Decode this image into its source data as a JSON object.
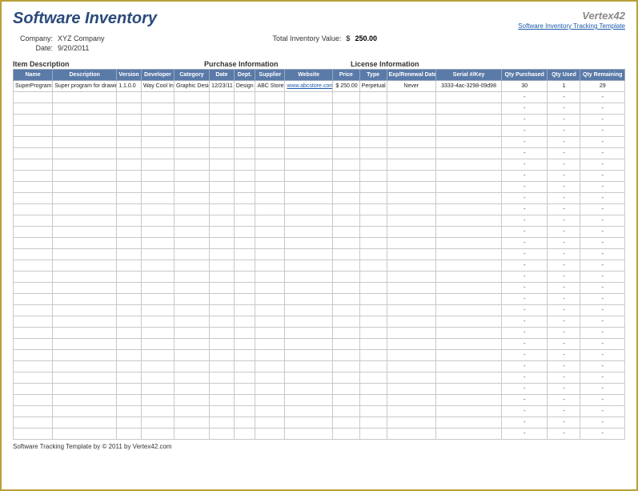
{
  "title": "Software Inventory",
  "brand": {
    "name": "Vertex42",
    "link_text": "Software Inventory Tracking Template"
  },
  "meta": {
    "company_label": "Company:",
    "company_value": "XYZ Company",
    "date_label": "Date:",
    "date_value": "9/20/2011",
    "total_label": "Total Inventory Value:",
    "currency": "$",
    "total_value": "250.00"
  },
  "sections": {
    "item": "Item Description",
    "purchase": "Purchase Information",
    "license": "License Information"
  },
  "columns": {
    "name": "Name",
    "description": "Description",
    "version": "Version",
    "developer": "Developer",
    "category": "Category",
    "date": "Date",
    "dept": "Dept.",
    "supplier": "Supplier",
    "website": "Website",
    "price": "Price",
    "type": "Type",
    "exp": "Exp/Renewal Date",
    "serial": "Serial #/Key",
    "qty_purchased": "Qty Purchased",
    "qty_used": "Qty Used",
    "qty_remaining": "Qty Remaining"
  },
  "col_widths": {
    "name": 48,
    "description": 78,
    "version": 30,
    "developer": 40,
    "category": 43,
    "date": 30,
    "dept": 26,
    "supplier": 36,
    "website": 58,
    "price": 33,
    "type": 33,
    "exp": 60,
    "serial": 80,
    "qty_purchased": 56,
    "qty_used": 40,
    "qty_remaining": 54
  },
  "rows": [
    {
      "name": "SuperProgram",
      "description": "Super program for drawin",
      "version": "1.1.0.0",
      "developer": "Way Cool In",
      "category": "Graphic Design",
      "date": "12/23/11",
      "dept": "Design",
      "supplier": "ABC Store",
      "website": "www.abcstore.com",
      "price": "$  250.00",
      "type": "Perpetual",
      "exp": "Never",
      "serial": "3333-4ac-3298-09d98",
      "qty_purchased": "30",
      "qty_used": "1",
      "qty_remaining": "29"
    }
  ],
  "empty_rows": 31,
  "footer": {
    "text_prefix": "Software Tracking Template by ",
    "copyright": "© 2011 by Vertex42.com"
  },
  "colors": {
    "header_bg": "#5a7aa8",
    "title_color": "#2a4a7a",
    "link_color": "#1a5aaa",
    "border_outer": "#b8a03a",
    "cell_border": "#c8c8c8"
  }
}
